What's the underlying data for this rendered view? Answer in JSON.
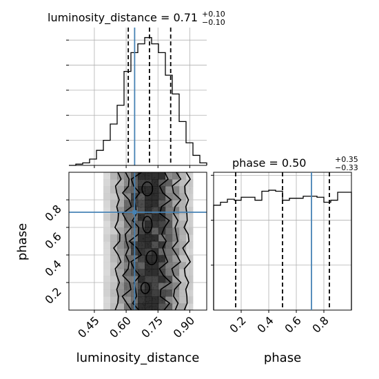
{
  "chart_data": {
    "type": "corner",
    "parameters": [
      "luminosity_distance",
      "phase"
    ],
    "truths": {
      "luminosity_distance": 0.64,
      "phase": 0.71
    },
    "panels": {
      "luminosity_distance_hist": {
        "title_prefix": "luminosity_distance = ",
        "title_value": "0.71",
        "title_plus": "+0.10",
        "title_minus": "−0.10",
        "quantiles": [
          0.61,
          0.71,
          0.81
        ],
        "xlim": [
          0.33,
          0.98
        ],
        "bins": [
          0.33,
          0.3625,
          0.395,
          0.4275,
          0.46,
          0.4925,
          0.525,
          0.5575,
          0.59,
          0.6225,
          0.655,
          0.6875,
          0.72,
          0.7525,
          0.785,
          0.8175,
          0.85,
          0.8825,
          0.915,
          0.9475,
          0.98
        ],
        "counts": [
          0,
          1,
          2,
          5,
          12,
          20,
          33,
          48,
          75,
          90,
          97,
          102,
          97,
          90,
          72,
          57,
          35,
          18,
          8,
          2
        ],
        "ylim": [
          0,
          110
        ]
      },
      "phase_hist": {
        "title_prefix": "phase = ",
        "title_value": "0.50",
        "title_plus": "+0.35",
        "title_minus": "−0.33",
        "quantiles": [
          0.16,
          0.5,
          0.84
        ],
        "xlim": [
          0.0,
          1.0
        ],
        "xticks": [
          "0.2",
          "0.4",
          "0.6",
          "0.8"
        ],
        "bins": [
          0.0,
          0.05,
          0.1,
          0.15,
          0.2,
          0.25,
          0.3,
          0.35,
          0.4,
          0.45,
          0.5,
          0.55,
          0.6,
          0.65,
          0.7,
          0.75,
          0.8,
          0.85,
          0.9,
          0.95,
          1.0
        ],
        "counts": [
          105,
          108,
          111,
          110,
          113,
          113,
          110,
          119,
          120,
          119,
          110,
          112,
          112,
          114,
          114,
          113,
          108,
          110,
          118,
          118
        ],
        "ylim": [
          0,
          138
        ]
      },
      "joint": {
        "xlabel": "luminosity_distance",
        "ylabel": "phase",
        "xlim": [
          0.33,
          0.98
        ],
        "ylim": [
          0.0,
          1.0
        ],
        "xticks": [
          "0.45",
          "0.60",
          "0.75",
          "0.90"
        ],
        "yticks": [
          "0.2",
          "0.4",
          "0.6",
          "0.8"
        ]
      },
      "phase_xlabel": "phase"
    },
    "grid": true,
    "colors": {
      "truth": "#4682b4",
      "hist": "#000000",
      "contour": "#000000",
      "grid": "#b0b0b0"
    }
  }
}
